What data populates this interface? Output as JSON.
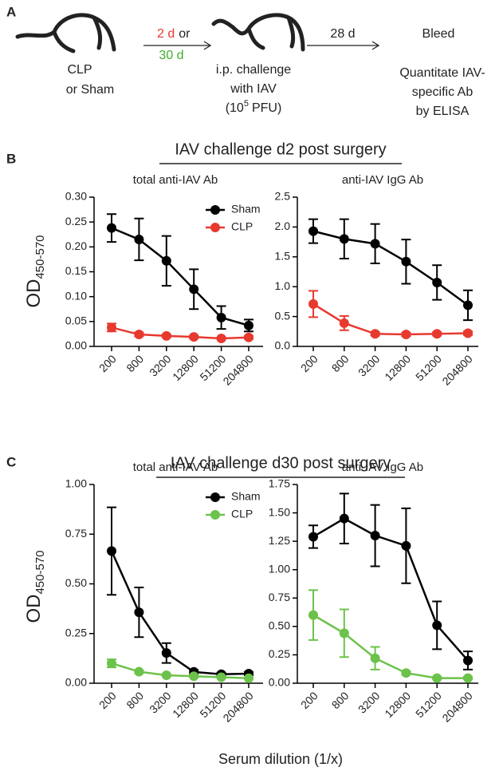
{
  "schematic": {
    "panel": "A",
    "step1": [
      "CLP",
      "or Sham"
    ],
    "delay1": {
      "red": "2 d",
      "or": "or",
      "green": "30 d"
    },
    "step2": {
      "line1": "i.p. challenge",
      "line2": "with IAV",
      "dose_open": "(10",
      "dose_exp": "5",
      "dose_close": "PFU)"
    },
    "delay2": "28 d",
    "step3": [
      "Bleed",
      "Quantitate IAV-",
      "specific Ab",
      "by ELISA"
    ]
  },
  "sections": [
    {
      "panel": "B",
      "title": "IAV challenge d2 post surgery",
      "ylabel": "OD",
      "ylabel_sub": "450-570"
    },
    {
      "panel": "C",
      "title": "IAV challenge d30 post surgery",
      "ylabel": "OD",
      "ylabel_sub": "450-570"
    }
  ],
  "xlabel": "Serum dilution (1/x)",
  "chart_data": [
    {
      "type": "line",
      "title": "total anti-IAV Ab",
      "legend": "upper right",
      "categories": [
        "200",
        "800",
        "3200",
        "12800",
        "51200",
        "204800"
      ],
      "ylim": [
        0,
        0.3
      ],
      "yticks": [
        {
          "value": 0,
          "label": "0.00"
        },
        0.05,
        {
          "value": 0.1,
          "label": "0.10"
        },
        0.15,
        {
          "value": 0.2,
          "label": "0.20"
        },
        0.25,
        {
          "value": 0.3,
          "label": "0.30"
        }
      ],
      "series": [
        {
          "name": "Sham",
          "color": "#000000",
          "values": [
            0.238,
            0.215,
            0.172,
            0.115,
            0.058,
            0.042
          ],
          "errors": [
            0.028,
            0.042,
            0.05,
            0.04,
            0.023,
            0.012
          ]
        },
        {
          "name": "CLP",
          "color": "#e8392f",
          "values": [
            0.038,
            0.024,
            0.021,
            0.019,
            0.016,
            0.018
          ],
          "errors": [
            0.008,
            0.004,
            0.003,
            0.003,
            0.002,
            0.003
          ]
        }
      ]
    },
    {
      "type": "line",
      "title": "anti-IAV IgG Ab",
      "categories": [
        "200",
        "800",
        "3200",
        "12800",
        "51200",
        "204800"
      ],
      "ylim": [
        0,
        2.5
      ],
      "yticks": [
        {
          "value": 0,
          "label": "0.0"
        },
        0.5,
        {
          "value": 1,
          "label": "1.0"
        },
        1.5,
        {
          "value": 2,
          "label": "2.0"
        },
        2.5
      ],
      "series": [
        {
          "color": "#000000",
          "values": [
            1.93,
            1.8,
            1.72,
            1.42,
            1.07,
            0.69
          ],
          "errors": [
            0.2,
            0.33,
            0.33,
            0.37,
            0.29,
            0.25
          ]
        },
        {
          "color": "#e8392f",
          "values": [
            0.71,
            0.39,
            0.21,
            0.2,
            0.21,
            0.22
          ],
          "errors": [
            0.22,
            0.12,
            0.03,
            0.03,
            0.03,
            0.03
          ]
        }
      ]
    },
    {
      "type": "line",
      "title": "total anti-IAV Ab",
      "legend": "upper right",
      "categories": [
        "200",
        "800",
        "3200",
        "12800",
        "51200",
        "204800"
      ],
      "ylim": [
        0,
        1
      ],
      "yticks": [
        {
          "value": 0,
          "label": "0.00"
        },
        0.25,
        {
          "value": 0.5,
          "label": "0.50"
        },
        0.75,
        {
          "value": 1,
          "label": "1.00"
        }
      ],
      "series": [
        {
          "name": "Sham",
          "color": "#000000",
          "values": [
            0.665,
            0.357,
            0.152,
            0.057,
            0.045,
            0.048
          ],
          "errors": [
            0.22,
            0.125,
            0.05,
            0.01,
            0.008,
            0.008
          ]
        },
        {
          "name": "CLP",
          "color": "#6cc24a",
          "values": [
            0.1,
            0.058,
            0.04,
            0.035,
            0.03,
            0.025
          ],
          "errors": [
            0.02,
            0.008,
            0.005,
            0.004,
            0.003,
            0.003
          ]
        }
      ]
    },
    {
      "type": "line",
      "title": "anti-IAV IgG Ab",
      "categories": [
        "200",
        "800",
        "3200",
        "12800",
        "51200",
        "204800"
      ],
      "ylim": [
        0,
        1.75
      ],
      "yticks": [
        {
          "value": 0,
          "label": "0.00"
        },
        0.25,
        {
          "value": 0.5,
          "label": "0.50"
        },
        0.75,
        {
          "value": 1,
          "label": "1.00"
        },
        1.25,
        {
          "value": 1.5,
          "label": "1.50"
        },
        1.75
      ],
      "series": [
        {
          "color": "#000000",
          "values": [
            1.29,
            1.45,
            1.3,
            1.21,
            0.51,
            0.2
          ],
          "errors": [
            0.1,
            0.22,
            0.27,
            0.33,
            0.21,
            0.08
          ]
        },
        {
          "color": "#6cc24a",
          "values": [
            0.6,
            0.44,
            0.22,
            0.09,
            0.045,
            0.045
          ],
          "errors": [
            0.22,
            0.21,
            0.1,
            0.015,
            0.01,
            0.01
          ]
        }
      ]
    }
  ]
}
